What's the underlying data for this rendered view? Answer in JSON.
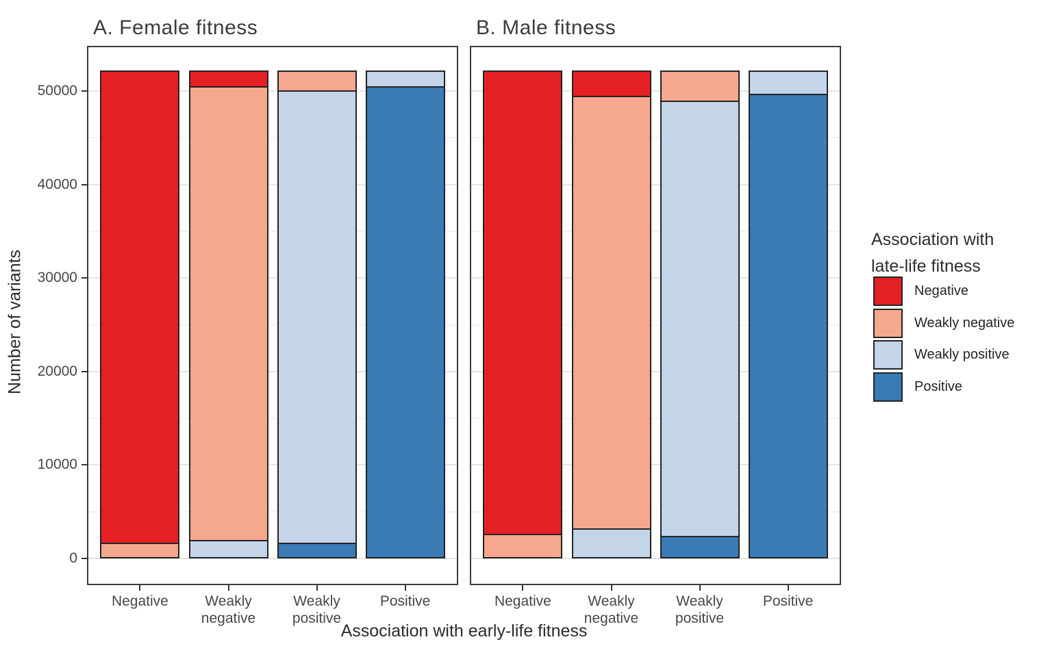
{
  "figure": {
    "y_axis": {
      "label": "Number of variants",
      "ticks": [
        0,
        10000,
        20000,
        30000,
        40000,
        50000
      ],
      "minor_ticks": [
        5000,
        15000,
        25000,
        35000,
        45000
      ]
    },
    "x_axis": {
      "label": "Association with early-life fitness",
      "categories": [
        "Negative",
        "Weakly negative",
        "Weakly positive",
        "Positive"
      ]
    },
    "legend": {
      "title_line1": "Association with",
      "title_line2": "late-life fitness",
      "items": [
        {
          "label": "Negative",
          "color": "#e52024"
        },
        {
          "label": "Weakly negative",
          "color": "#f6a88f"
        },
        {
          "label": "Weakly positive",
          "color": "#c4d4e9"
        },
        {
          "label": "Positive",
          "color": "#3a7ab5"
        }
      ]
    },
    "colors": {
      "bar_border": "#232323",
      "grid_major": "#e4e4e4",
      "grid_minor": "#f2f2f2",
      "panel_border": "#3a3a3a"
    }
  },
  "chart_data": [
    {
      "type": "bar",
      "stacked": true,
      "title": "A. Female fitness",
      "categories": [
        "Negative",
        "Weakly negative",
        "Weakly positive",
        "Positive"
      ],
      "series": [
        {
          "name": "Negative",
          "color": "#e52024",
          "values": [
            50500,
            1700,
            0,
            0
          ]
        },
        {
          "name": "Weakly negative",
          "color": "#f6a88f",
          "values": [
            1700,
            48500,
            2100,
            0
          ]
        },
        {
          "name": "Weakly positive",
          "color": "#c4d4e9",
          "values": [
            0,
            2000,
            48400,
            1700
          ]
        },
        {
          "name": "Positive",
          "color": "#3a7ab5",
          "values": [
            0,
            0,
            1700,
            50500
          ]
        }
      ],
      "stack_order_top_to_bottom": [
        "Negative",
        "Weakly negative",
        "Weakly positive",
        "Positive"
      ],
      "column_total": 52200,
      "xlabel": "Association with early-life fitness",
      "ylabel": "Number of variants",
      "ylim": [
        0,
        54800
      ],
      "yticks": [
        0,
        10000,
        20000,
        30000,
        40000,
        50000
      ],
      "grid": "major+minor",
      "legend_position": "right"
    },
    {
      "type": "bar",
      "stacked": true,
      "title": "B. Male fitness",
      "categories": [
        "Negative",
        "Weakly negative",
        "Weakly positive",
        "Positive"
      ],
      "series": [
        {
          "name": "Negative",
          "color": "#e52024",
          "values": [
            49600,
            2700,
            0,
            0
          ]
        },
        {
          "name": "Weakly negative",
          "color": "#f6a88f",
          "values": [
            2600,
            46300,
            3200,
            0
          ]
        },
        {
          "name": "Weakly positive",
          "color": "#c4d4e9",
          "values": [
            0,
            3200,
            46600,
            2500
          ]
        },
        {
          "name": "Positive",
          "color": "#3a7ab5",
          "values": [
            0,
            0,
            2400,
            49700
          ]
        }
      ],
      "stack_order_top_to_bottom": [
        "Negative",
        "Weakly negative",
        "Weakly positive",
        "Positive"
      ],
      "column_total": 52200,
      "xlabel": "Association with early-life fitness",
      "ylabel": "Number of variants",
      "ylim": [
        0,
        54800
      ],
      "yticks": [
        0,
        10000,
        20000,
        30000,
        40000,
        50000
      ],
      "grid": "major+minor",
      "legend_position": "right"
    }
  ]
}
